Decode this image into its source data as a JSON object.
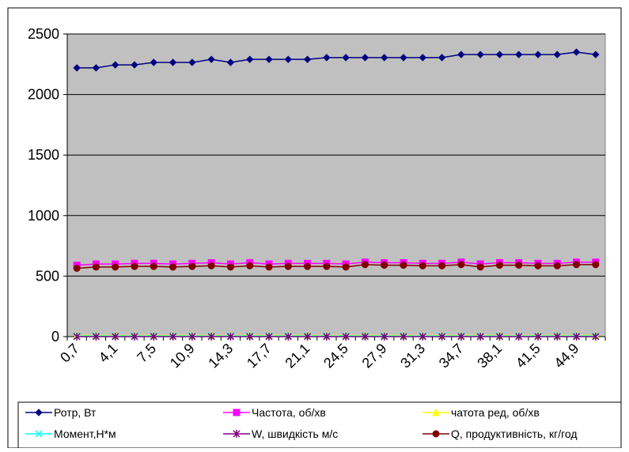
{
  "chart_data": {
    "type": "line",
    "ylim": [
      0,
      2500
    ],
    "yticks": [
      0,
      500,
      1000,
      1500,
      2000,
      2500
    ],
    "grid": true,
    "legend_position": "bottom",
    "plot_background": "#c0c0c0",
    "x_tick_labels": [
      "0,7",
      "4,1",
      "7,5",
      "10,9",
      "14,3",
      "17,7",
      "21,1",
      "24,5",
      "27,9",
      "31,3",
      "34,7",
      "38,1",
      "41,5",
      "44,9"
    ],
    "n_points": 28,
    "series": [
      {
        "name": "Ротр, Вт",
        "color": "#000080",
        "marker": "diamond",
        "values": [
          2220,
          2220,
          2245,
          2245,
          2265,
          2265,
          2265,
          2290,
          2265,
          2290,
          2290,
          2290,
          2290,
          2305,
          2305,
          2305,
          2305,
          2305,
          2305,
          2305,
          2330,
          2330,
          2330,
          2330,
          2330,
          2330,
          2350,
          2330
        ]
      },
      {
        "name": "Частота, об/хв",
        "color": "#ff00ff",
        "marker": "square",
        "values": [
          590,
          600,
          600,
          605,
          605,
          600,
          605,
          610,
          600,
          610,
          600,
          605,
          605,
          605,
          600,
          615,
          610,
          610,
          605,
          605,
          615,
          600,
          610,
          610,
          605,
          605,
          615,
          615
        ]
      },
      {
        "name": "чатота ред, об/хв",
        "color": "#ffff00",
        "marker": "triangle",
        "values": [
          10,
          10,
          10,
          10,
          10,
          10,
          10,
          10,
          10,
          10,
          10,
          10,
          10,
          10,
          10,
          10,
          10,
          10,
          10,
          10,
          10,
          10,
          10,
          10,
          10,
          10,
          10,
          10
        ]
      },
      {
        "name": "Момент,Н*м",
        "color": "#00ffff",
        "marker": "x",
        "values": [
          5,
          5,
          5,
          5,
          5,
          5,
          5,
          5,
          5,
          5,
          5,
          5,
          5,
          5,
          5,
          5,
          5,
          5,
          5,
          5,
          5,
          5,
          5,
          5,
          5,
          5,
          5,
          5
        ]
      },
      {
        "name": "W, швидкість м/с",
        "color": "#800080",
        "marker": "asterisk",
        "values": [
          0,
          0,
          0,
          0,
          0,
          0,
          0,
          0,
          0,
          0,
          0,
          0,
          0,
          0,
          0,
          0,
          0,
          0,
          0,
          0,
          0,
          0,
          0,
          0,
          0,
          0,
          0,
          0
        ]
      },
      {
        "name": "Q, продуктивність, кг/год",
        "color": "#800000",
        "marker": "circle",
        "values": [
          565,
          575,
          575,
          580,
          580,
          575,
          580,
          585,
          575,
          585,
          575,
          580,
          580,
          580,
          575,
          595,
          590,
          590,
          585,
          585,
          595,
          575,
          590,
          590,
          585,
          585,
          595,
          595
        ]
      }
    ]
  }
}
